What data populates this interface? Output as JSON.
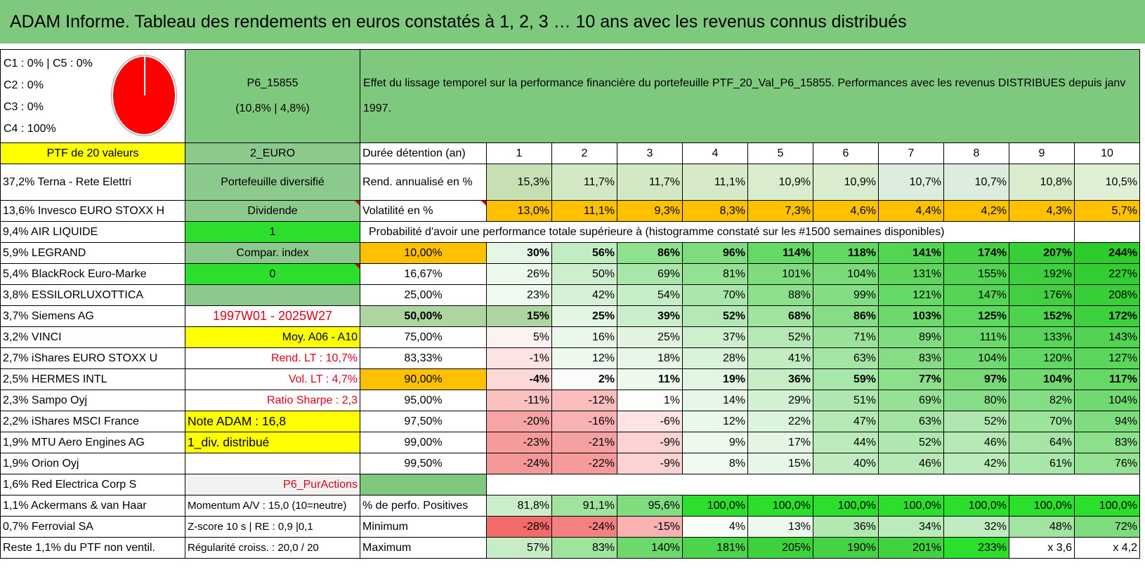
{
  "title": "ADAM Informe. Tableau des rendements en euros constatés à 1, 2, 3 … 10 ans avec les revenus connus distribués",
  "header": {
    "categories": [
      "C1 : 0% | C5 : 0%",
      "C2 : 0%",
      "C3 : 0%",
      "C4 : 100%"
    ],
    "portfolio_code": "P6_15855",
    "portfolio_perf": "(10,8% | 4,8%)",
    "description": "Effet du lissage temporel sur la performance financière du portefeuille PTF_20_Val_P6_15855. Performances avec les revenus DISTRIBUES depuis janv 1997."
  },
  "holdings": [
    "PTF de 20 valeurs",
    "37,2% Terna - Rete Elettri",
    "13,6% Invesco EURO STOXX H",
    "9,4% AIR LIQUIDE",
    "5,9% LEGRAND",
    "5,4% BlackRock Euro-Marke",
    "3,8% ESSILORLUXOTTICA",
    "3,7% Siemens AG",
    "3,2% VINCI",
    "2,7% iShares EURO STOXX U",
    "2,5% HERMES INTL",
    "2,3% Sampo Oyj",
    "2,2% iShares MSCI France",
    "1,9% MTU Aero Engines AG",
    "1,9% Orion Oyj",
    "1,6% Red Electrica Corp S",
    "1,1% Ackermans & van Haar",
    "0,7% Ferrovial SA",
    "Reste 1,1% du PTF non ventil."
  ],
  "info": [
    "2_EURO",
    "Portefeuille diversifié",
    "Dividende",
    "1",
    "Compar. index",
    "0",
    "",
    "1997W01 - 2025W27",
    "Moy. A06 - A10",
    "Rend. LT : 10,7%",
    "Vol. LT : 4,7%",
    "Ratio Sharpe : 2,3",
    "Note ADAM : 16,8",
    "1_div. distribué",
    "",
    "P6_PurActions",
    "Momentum A/V : 15,0 (10=neutre)",
    "Z-score 10 s | RE : 0,9 |0,1",
    "Régularité croiss. : 20,0 / 20"
  ],
  "duration_label": "Durée détention (an)",
  "years": [
    "1",
    "2",
    "3",
    "4",
    "5",
    "6",
    "7",
    "8",
    "9",
    "10"
  ],
  "rend_label": "Rend. annualisé en %",
  "rend": [
    "15,3%",
    "11,7%",
    "11,7%",
    "11,1%",
    "10,9%",
    "10,9%",
    "10,7%",
    "10,7%",
    "10,8%",
    "10,5%"
  ],
  "vol_label": "Volatilité en %",
  "vol": [
    "13,0%",
    "11,1%",
    "9,3%",
    "8,3%",
    "7,3%",
    "4,6%",
    "4,4%",
    "4,2%",
    "4,3%",
    "5,7%"
  ],
  "hist_title": "Probabilité d'avoir une performance totale supérieure à (histogramme constaté sur les #1500 semaines disponibles)",
  "probs": [
    {
      "p": "10,00%",
      "v": [
        "30%",
        "56%",
        "86%",
        "96%",
        "114%",
        "118%",
        "141%",
        "174%",
        "207%",
        "244%"
      ]
    },
    {
      "p": "16,67%",
      "v": [
        "26%",
        "50%",
        "69%",
        "81%",
        "101%",
        "104%",
        "131%",
        "155%",
        "192%",
        "227%"
      ]
    },
    {
      "p": "25,00%",
      "v": [
        "23%",
        "42%",
        "54%",
        "70%",
        "88%",
        "99%",
        "121%",
        "147%",
        "176%",
        "208%"
      ]
    },
    {
      "p": "50,00%",
      "v": [
        "15%",
        "25%",
        "39%",
        "52%",
        "68%",
        "86%",
        "103%",
        "125%",
        "152%",
        "172%"
      ]
    },
    {
      "p": "75,00%",
      "v": [
        "5%",
        "16%",
        "25%",
        "37%",
        "52%",
        "71%",
        "89%",
        "111%",
        "133%",
        "143%"
      ]
    },
    {
      "p": "83,33%",
      "v": [
        "-1%",
        "12%",
        "18%",
        "28%",
        "41%",
        "63%",
        "83%",
        "104%",
        "120%",
        "127%"
      ]
    },
    {
      "p": "90,00%",
      "v": [
        "-4%",
        "2%",
        "11%",
        "19%",
        "36%",
        "59%",
        "77%",
        "97%",
        "104%",
        "117%"
      ]
    },
    {
      "p": "95,00%",
      "v": [
        "-11%",
        "-12%",
        "1%",
        "14%",
        "29%",
        "51%",
        "69%",
        "80%",
        "82%",
        "104%"
      ]
    },
    {
      "p": "97,50%",
      "v": [
        "-20%",
        "-16%",
        "-6%",
        "12%",
        "22%",
        "47%",
        "63%",
        "52%",
        "70%",
        "94%"
      ]
    },
    {
      "p": "99,00%",
      "v": [
        "-23%",
        "-21%",
        "-9%",
        "9%",
        "17%",
        "44%",
        "52%",
        "46%",
        "64%",
        "83%"
      ]
    },
    {
      "p": "99,50%",
      "v": [
        "-24%",
        "-22%",
        "-9%",
        "8%",
        "15%",
        "40%",
        "46%",
        "42%",
        "61%",
        "76%"
      ]
    }
  ],
  "pos_label": "% de perfo. Positives",
  "pos": [
    "81,8%",
    "91,1%",
    "95,6%",
    "100,0%",
    "100,0%",
    "100,0%",
    "100,0%",
    "100,0%",
    "100,0%",
    "100,0%"
  ],
  "min_label": "Minimum",
  "min": [
    "-28%",
    "-24%",
    "-15%",
    "4%",
    "13%",
    "36%",
    "34%",
    "32%",
    "48%",
    "72%"
  ],
  "max_label": "Maximum",
  "max": [
    "57%",
    "83%",
    "140%",
    "181%",
    "205%",
    "190%",
    "201%",
    "233%",
    "x 3,6",
    "x 4,2"
  ],
  "colors": {
    "green_header": "#7fc97f",
    "yellow": "#ffff00",
    "orange": "#ffc000",
    "bright_green": "#2ddf2d",
    "pie": "#ff0000"
  }
}
